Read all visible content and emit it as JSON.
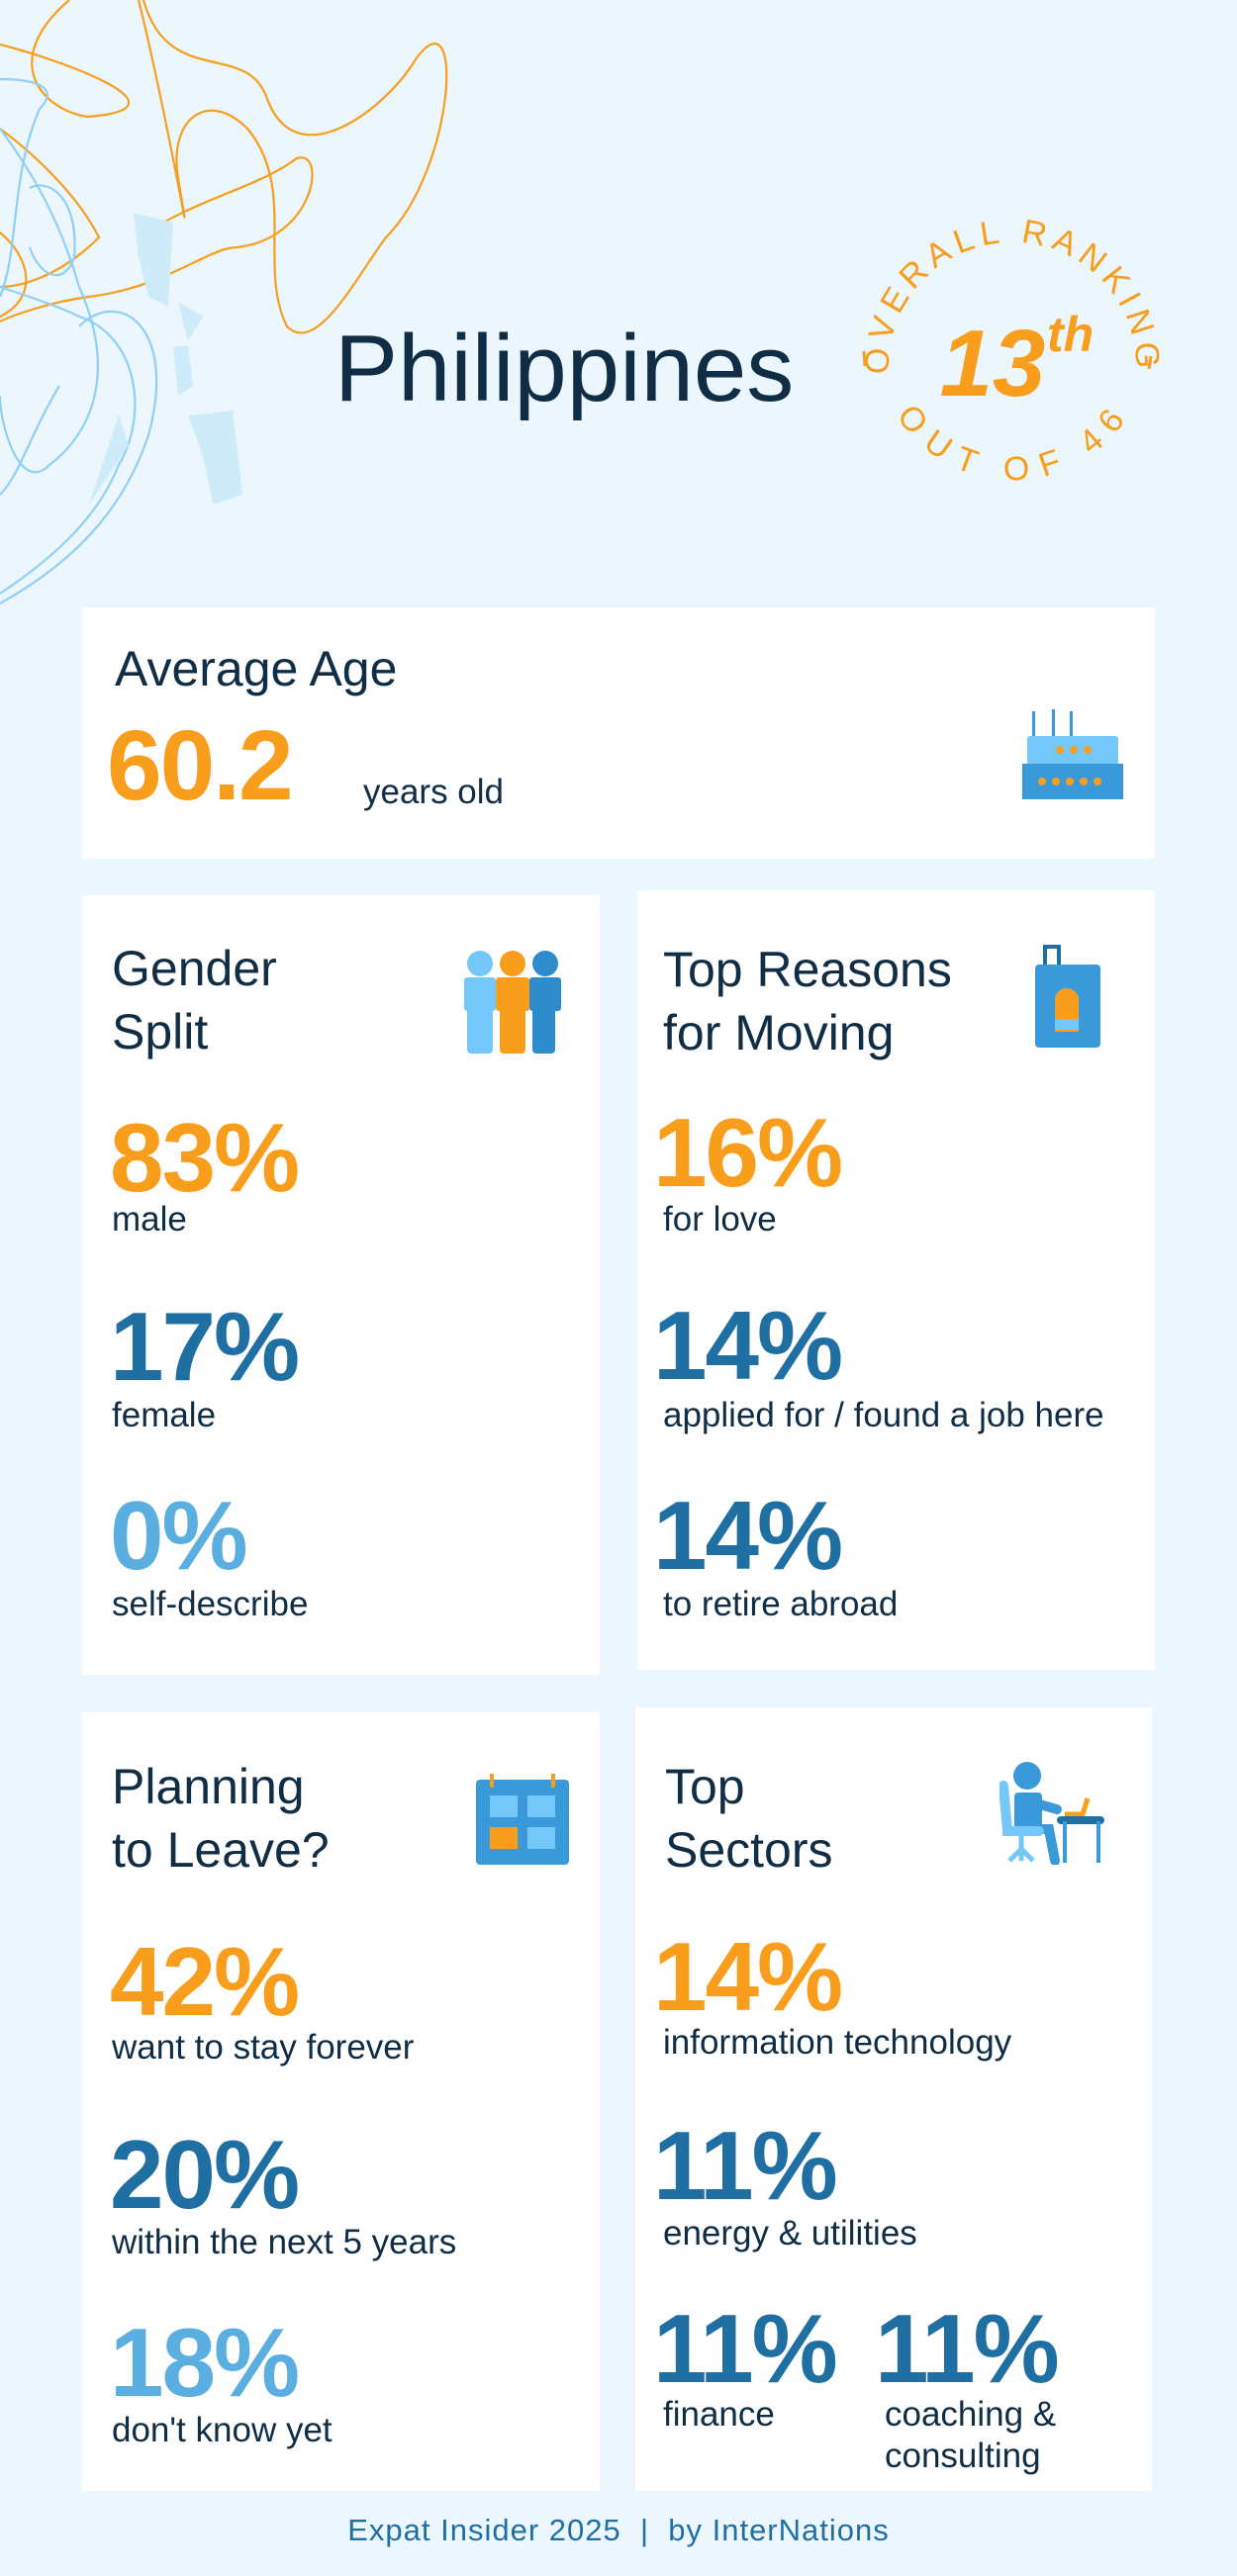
{
  "header": {
    "country": "Philippines",
    "ranking_arc_top": "OVERALL RANKING",
    "ranking_arc_bottom": "OUT OF 46",
    "rank_number": "13",
    "rank_suffix": "th"
  },
  "average_age": {
    "title": "Average Age",
    "value": "60.2",
    "unit": "years old",
    "icon": "birthday-cake-icon"
  },
  "gender_split": {
    "title": "Gender\nSplit",
    "icon": "people-icon",
    "items": [
      {
        "value": "83%",
        "label": "male",
        "color": "#f99d1c"
      },
      {
        "value": "17%",
        "label": "female",
        "color": "#1f6fa3"
      },
      {
        "value": "0%",
        "label": "self-describe",
        "color": "#5aaee0"
      }
    ]
  },
  "top_reasons": {
    "title": "Top Reasons\nfor Moving",
    "icon": "suitcase-icon",
    "items": [
      {
        "value": "16%",
        "label": "for love"
      },
      {
        "value": "14%",
        "label": "applied for / found a job here"
      },
      {
        "value": "14%",
        "label": "to retire abroad"
      }
    ]
  },
  "planning_to_leave": {
    "title": "Planning\nto Leave?",
    "icon": "calendar-icon",
    "items": [
      {
        "value": "42%",
        "label": "want to stay forever"
      },
      {
        "value": "20%",
        "label": "within the next 5 years"
      },
      {
        "value": "18%",
        "label": "don't know yet"
      }
    ]
  },
  "top_sectors": {
    "title": "Top\nSectors",
    "icon": "person-at-desk-icon",
    "items": [
      {
        "value": "14%",
        "label": "information technology"
      },
      {
        "value": "11%",
        "label": "energy & utilities"
      },
      {
        "value": "11%",
        "label": "finance"
      },
      {
        "value": "11%",
        "label": "coaching &\nconsulting"
      }
    ]
  },
  "footer": {
    "text": "Expat Insider 2025  |  by InterNations"
  },
  "colors": {
    "orange": "#f99d1c",
    "dark_blue": "#1f6fa3",
    "light_blue": "#5aaee0",
    "background": "#ebf6fd",
    "navy": "#0f2d45"
  }
}
